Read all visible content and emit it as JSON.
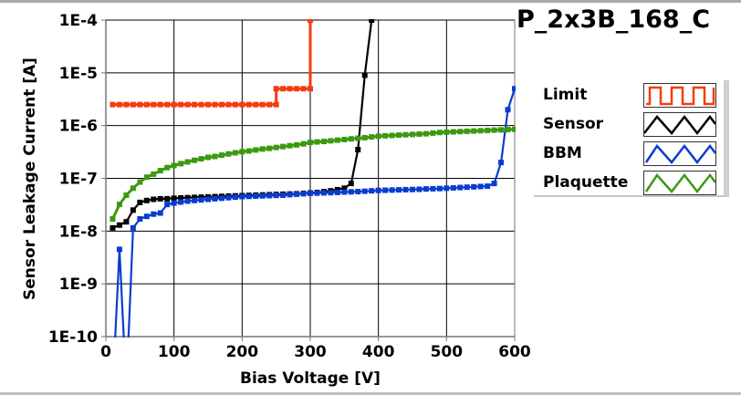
{
  "chart_data": {
    "type": "line",
    "title": "P_2x3B_168_C",
    "xlabel": "Bias Voltage [V]",
    "ylabel": "Sensor Leakage Current [A]",
    "xlim": [
      0,
      600
    ],
    "ylim": [
      1e-10,
      0.0001
    ],
    "yscale": "log",
    "grid": true,
    "legend_position": "right",
    "xticks": [
      "0",
      "100",
      "200",
      "300",
      "400",
      "500",
      "600"
    ],
    "xtick_values": [
      0,
      100,
      200,
      300,
      400,
      500,
      600
    ],
    "yticks": [
      "1E-4",
      "1E-5",
      "1E-6",
      "1E-7",
      "1E-8",
      "1E-9",
      "1E-10"
    ],
    "ytick_values": [
      0.0001,
      1e-05,
      1e-06,
      1e-07,
      1e-08,
      1e-09,
      1e-10
    ],
    "series": [
      {
        "name": "Limit",
        "color": "#f43c10",
        "x": [
          10,
          20,
          30,
          40,
          50,
          60,
          70,
          80,
          90,
          100,
          110,
          120,
          130,
          140,
          150,
          160,
          170,
          180,
          190,
          200,
          210,
          220,
          230,
          240,
          250,
          250,
          260,
          270,
          280,
          290,
          300,
          300
        ],
        "y": [
          2.5e-06,
          2.5e-06,
          2.5e-06,
          2.5e-06,
          2.5e-06,
          2.5e-06,
          2.5e-06,
          2.5e-06,
          2.5e-06,
          2.5e-06,
          2.5e-06,
          2.5e-06,
          2.5e-06,
          2.5e-06,
          2.5e-06,
          2.5e-06,
          2.5e-06,
          2.5e-06,
          2.5e-06,
          2.5e-06,
          2.5e-06,
          2.5e-06,
          2.5e-06,
          2.5e-06,
          2.5e-06,
          5e-06,
          5e-06,
          5e-06,
          5e-06,
          5e-06,
          5e-06,
          0.0001
        ]
      },
      {
        "name": "Sensor",
        "color": "#000000",
        "x_start": 10,
        "x_step": 10,
        "y": [
          1.15e-08,
          1.3e-08,
          1.5e-08,
          2.5e-08,
          3.5e-08,
          3.8e-08,
          4e-08,
          4.1e-08,
          4.1e-08,
          4.2e-08,
          4.25e-08,
          4.3e-08,
          4.35e-08,
          4.4e-08,
          4.45e-08,
          4.5e-08,
          4.55e-08,
          4.6e-08,
          4.65e-08,
          4.7e-08,
          4.75e-08,
          4.8e-08,
          4.85e-08,
          4.9e-08,
          4.95e-08,
          5e-08,
          5.05e-08,
          5.1e-08,
          5.2e-08,
          5.3e-08,
          5.4e-08,
          5.6e-08,
          5.8e-08,
          6.1e-08,
          6.5e-08,
          8e-08,
          3.5e-07,
          9e-06,
          0.0001
        ]
      },
      {
        "name": "BBM",
        "color": "#0a3cd0",
        "x_start": 10,
        "x_step": 10,
        "y": [
          1e-11,
          4.5e-09,
          1e-11,
          1.15e-08,
          1.7e-08,
          1.9e-08,
          2.1e-08,
          2.2e-08,
          3.2e-08,
          3.4e-08,
          3.55e-08,
          3.7e-08,
          3.8e-08,
          3.9e-08,
          4e-08,
          4.1e-08,
          4.2e-08,
          4.3e-08,
          4.4e-08,
          4.5e-08,
          4.55e-08,
          4.6e-08,
          4.65e-08,
          4.7e-08,
          4.75e-08,
          4.8e-08,
          4.9e-08,
          5e-08,
          5.1e-08,
          5.2e-08,
          5.25e-08,
          5.3e-08,
          5.35e-08,
          5.4e-08,
          5.5e-08,
          5.55e-08,
          5.6e-08,
          5.7e-08,
          5.8e-08,
          5.9e-08,
          5.95e-08,
          6e-08,
          6.05e-08,
          6.1e-08,
          6.15e-08,
          6.2e-08,
          6.3e-08,
          6.35e-08,
          6.4e-08,
          6.5e-08,
          6.6e-08,
          6.7e-08,
          6.8e-08,
          6.9e-08,
          7e-08,
          7.1e-08,
          8e-08,
          2e-07,
          2e-06,
          5e-06
        ]
      },
      {
        "name": "Plaquette",
        "color": "#3c9a12",
        "x_start": 10,
        "x_step": 10,
        "y": [
          1.7e-08,
          3.2e-08,
          4.8e-08,
          6.5e-08,
          8.5e-08,
          1.05e-07,
          1.2e-07,
          1.4e-07,
          1.6e-07,
          1.75e-07,
          1.9e-07,
          2.05e-07,
          2.2e-07,
          2.35e-07,
          2.5e-07,
          2.6e-07,
          2.75e-07,
          2.9e-07,
          3.05e-07,
          3.2e-07,
          3.3e-07,
          3.45e-07,
          3.6e-07,
          3.7e-07,
          3.85e-07,
          4e-07,
          4.15e-07,
          4.3e-07,
          4.5e-07,
          4.8e-07,
          4.9e-07,
          5e-07,
          5.15e-07,
          5.3e-07,
          5.45e-07,
          5.6e-07,
          5.75e-07,
          5.9e-07,
          6.1e-07,
          6.3e-07,
          6.4e-07,
          6.5e-07,
          6.6e-07,
          6.7e-07,
          6.8e-07,
          6.9e-07,
          7e-07,
          7.2e-07,
          7.4e-07,
          7.5e-07,
          7.6e-07,
          7.7e-07,
          7.8e-07,
          7.9e-07,
          8e-07,
          8.1e-07,
          8.2e-07,
          8.3e-07,
          8.4e-07,
          8.5e-07
        ]
      }
    ]
  },
  "legend": {
    "items": [
      {
        "label": "Limit",
        "icon": "square-wave-icon"
      },
      {
        "label": "Sensor",
        "icon": "zigzag-icon"
      },
      {
        "label": "BBM",
        "icon": "zigzag-icon"
      },
      {
        "label": "Plaquette",
        "icon": "zigzag-icon"
      }
    ]
  }
}
